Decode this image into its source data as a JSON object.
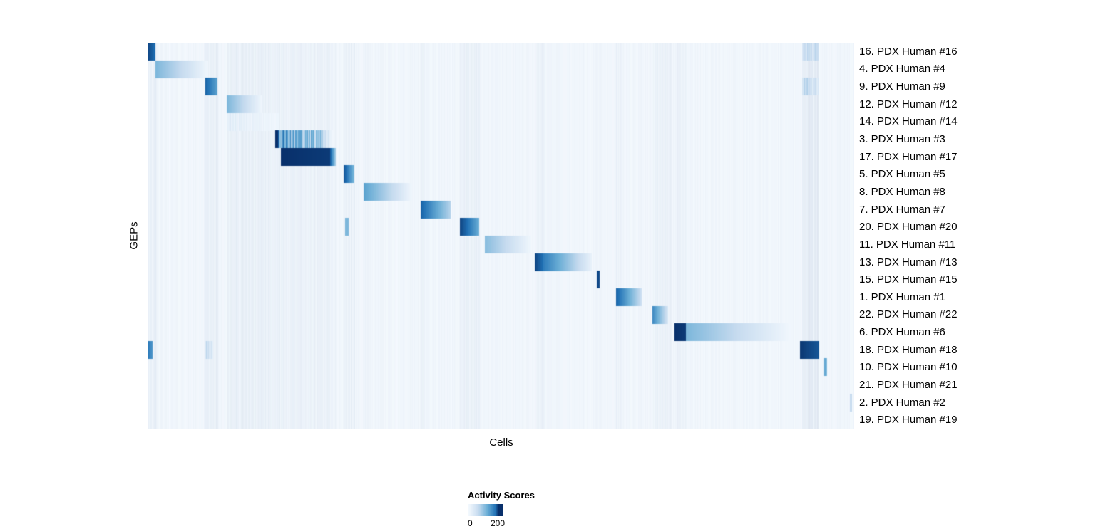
{
  "chart_data": {
    "type": "heatmap",
    "title": "",
    "xlabel": "Cells",
    "ylabel": "GEPs",
    "rows": [
      "16. PDX Human #16",
      "4. PDX Human #4",
      "9. PDX Human #9",
      "12. PDX Human #12",
      "14. PDX Human #14",
      "3. PDX Human #3",
      "17. PDX Human #17",
      "5. PDX Human #5",
      "8. PDX Human #8",
      "7. PDX Human #7",
      "20. PDX Human #20",
      "11. PDX Human #11",
      "13. PDX Human #13",
      "15. PDX Human #15",
      "1. PDX Human #1",
      "22. PDX Human #22",
      "6. PDX Human #6",
      "18. PDX Human #18",
      "10. PDX Human #10",
      "21. PDX Human #21",
      "2. PDX Human #2",
      "19. PDX Human #19"
    ],
    "legend": {
      "title": "Activity Scores",
      "min_label": "0",
      "max_label": "200",
      "min": 0,
      "max": 200
    },
    "colormap": [
      "#f7fbff",
      "#c6dbef",
      "#6baed6",
      "#2171b5",
      "#08306b"
    ],
    "background_value": 0.015,
    "blocks": [
      {
        "r": 0,
        "x0": 0.0,
        "x1": 0.01,
        "v0": 0.9,
        "v1": 0.75,
        "s": 0
      },
      {
        "r": 0,
        "x0": 0.926,
        "x1": 0.949,
        "v0": 0.35,
        "v1": 0.28,
        "s": 1
      },
      {
        "r": 1,
        "x0": 0.01,
        "x1": 0.085,
        "v0": 0.45,
        "v1": 0.04,
        "s": 0
      },
      {
        "r": 2,
        "x0": 0.081,
        "x1": 0.098,
        "v0": 0.8,
        "v1": 0.55,
        "s": 0
      },
      {
        "r": 2,
        "x0": 0.926,
        "x1": 0.949,
        "v0": 0.35,
        "v1": 0.28,
        "s": 1
      },
      {
        "r": 3,
        "x0": 0.111,
        "x1": 0.162,
        "v0": 0.45,
        "v1": 0.04,
        "s": 0
      },
      {
        "r": 4,
        "x0": 0.111,
        "x1": 0.186,
        "v0": 0.15,
        "v1": 0.05,
        "s": 1
      },
      {
        "r": 5,
        "x0": 0.18,
        "x1": 0.184,
        "v0": 1.0,
        "v1": 1.0,
        "s": 0
      },
      {
        "r": 5,
        "x0": 0.184,
        "x1": 0.25,
        "v0": 0.85,
        "v1": 0.45,
        "s": 1
      },
      {
        "r": 5,
        "x0": 0.25,
        "x1": 0.262,
        "v0": 0.3,
        "v1": 0.08,
        "s": 1
      },
      {
        "r": 6,
        "x0": 0.188,
        "x1": 0.258,
        "v0": 1.0,
        "v1": 0.96,
        "s": 0
      },
      {
        "r": 6,
        "x0": 0.258,
        "x1": 0.266,
        "v0": 0.82,
        "v1": 0.35,
        "s": 0
      },
      {
        "r": 7,
        "x0": 0.277,
        "x1": 0.292,
        "v0": 0.85,
        "v1": 0.45,
        "s": 0
      },
      {
        "r": 8,
        "x0": 0.305,
        "x1": 0.374,
        "v0": 0.55,
        "v1": 0.04,
        "s": 0
      },
      {
        "r": 9,
        "x0": 0.386,
        "x1": 0.428,
        "v0": 0.8,
        "v1": 0.3,
        "s": 0
      },
      {
        "r": 10,
        "x0": 0.279,
        "x1": 0.284,
        "v0": 0.45,
        "v1": 0.45,
        "s": 0
      },
      {
        "r": 10,
        "x0": 0.441,
        "x1": 0.469,
        "v0": 0.92,
        "v1": 0.5,
        "s": 0
      },
      {
        "r": 11,
        "x0": 0.477,
        "x1": 0.542,
        "v0": 0.42,
        "v1": 0.04,
        "s": 0
      },
      {
        "r": 12,
        "x0": 0.547,
        "x1": 0.56,
        "v0": 0.92,
        "v1": 0.75,
        "s": 0
      },
      {
        "r": 12,
        "x0": 0.56,
        "x1": 0.628,
        "v0": 0.7,
        "v1": 0.08,
        "s": 0
      },
      {
        "r": 13,
        "x0": 0.635,
        "x1": 0.639,
        "v0": 0.9,
        "v1": 0.9,
        "s": 0
      },
      {
        "r": 14,
        "x0": 0.663,
        "x1": 0.699,
        "v0": 0.8,
        "v1": 0.22,
        "s": 0
      },
      {
        "r": 15,
        "x0": 0.714,
        "x1": 0.736,
        "v0": 0.65,
        "v1": 0.18,
        "s": 0
      },
      {
        "r": 16,
        "x0": 0.745,
        "x1": 0.762,
        "v0": 1.0,
        "v1": 0.96,
        "s": 0
      },
      {
        "r": 16,
        "x0": 0.762,
        "x1": 0.911,
        "v0": 0.45,
        "v1": 0.03,
        "s": 0
      },
      {
        "r": 17,
        "x0": 0.0,
        "x1": 0.006,
        "v0": 0.7,
        "v1": 0.6,
        "s": 0
      },
      {
        "r": 17,
        "x0": 0.081,
        "x1": 0.092,
        "v0": 0.35,
        "v1": 0.22,
        "s": 1
      },
      {
        "r": 17,
        "x0": 0.923,
        "x1": 0.951,
        "v0": 0.97,
        "v1": 0.85,
        "s": 0
      },
      {
        "r": 18,
        "x0": 0.958,
        "x1": 0.962,
        "v0": 0.55,
        "v1": 0.45,
        "s": 0
      },
      {
        "r": 20,
        "x0": 0.994,
        "x1": 0.997,
        "v0": 0.25,
        "v1": 0.25,
        "s": 0
      }
    ],
    "bands": [
      {
        "x0": 0.0,
        "x1": 0.012,
        "a": 0.04
      },
      {
        "x0": 0.079,
        "x1": 0.1,
        "a": 0.05
      },
      {
        "x0": 0.111,
        "x1": 0.187,
        "a": 0.04
      },
      {
        "x0": 0.188,
        "x1": 0.266,
        "a": 0.03
      },
      {
        "x0": 0.277,
        "x1": 0.293,
        "a": 0.04
      },
      {
        "x0": 0.305,
        "x1": 0.312,
        "a": 0.03
      },
      {
        "x0": 0.386,
        "x1": 0.392,
        "a": 0.03
      },
      {
        "x0": 0.441,
        "x1": 0.47,
        "a": 0.04
      },
      {
        "x0": 0.547,
        "x1": 0.562,
        "a": 0.03
      },
      {
        "x0": 0.663,
        "x1": 0.67,
        "a": 0.03
      },
      {
        "x0": 0.714,
        "x1": 0.742,
        "a": 0.03
      },
      {
        "x0": 0.746,
        "x1": 0.763,
        "a": 0.03
      },
      {
        "x0": 0.926,
        "x1": 0.95,
        "a": 0.07
      }
    ]
  }
}
